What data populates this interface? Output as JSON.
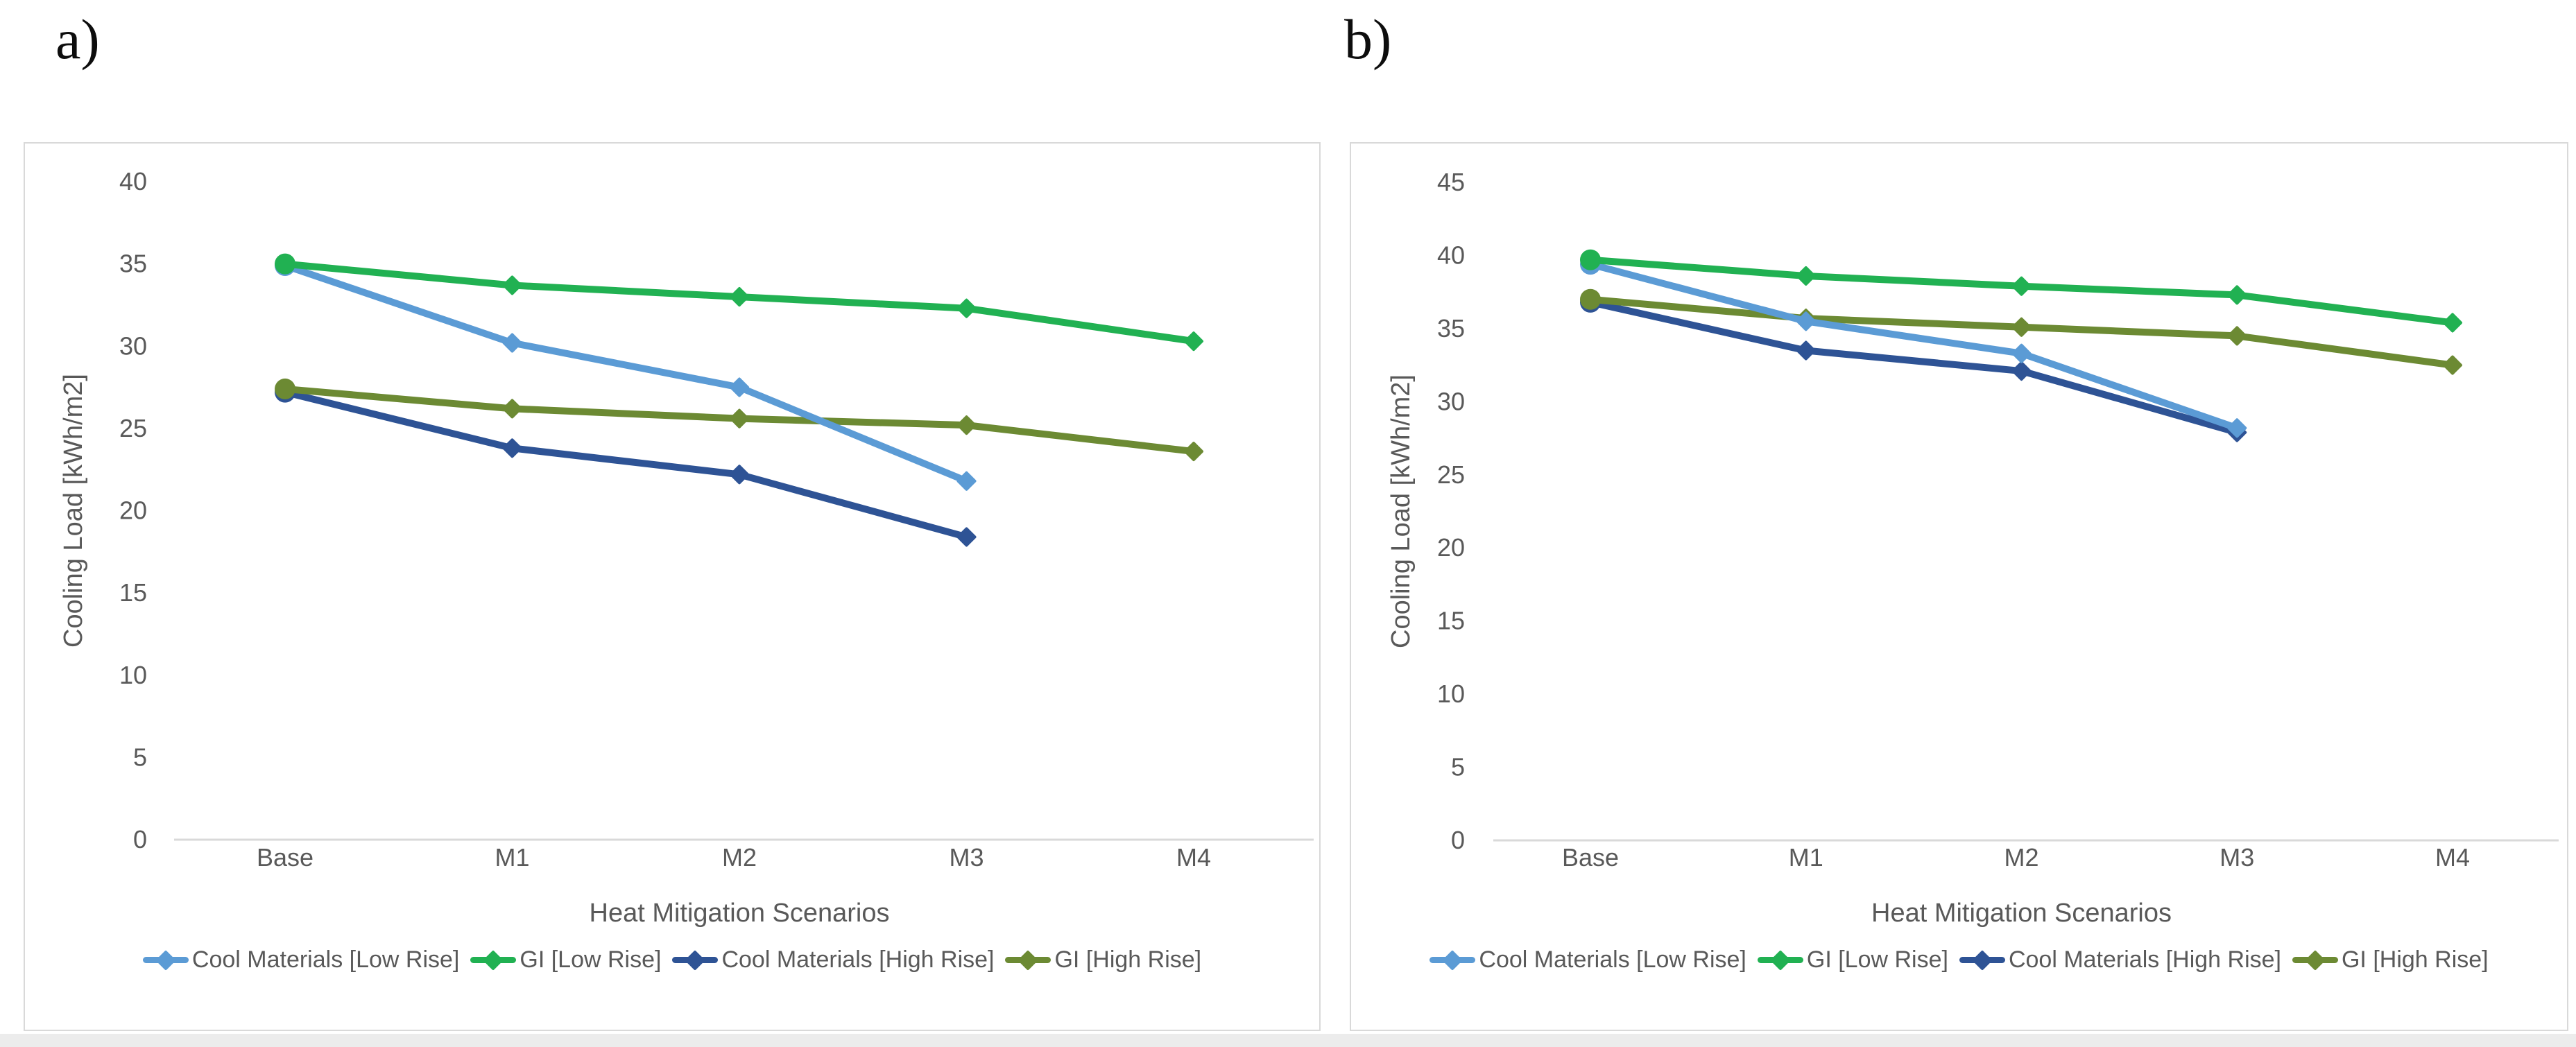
{
  "figure": {
    "background": "#ffffff",
    "panel_border_color": "#d9d9d9",
    "axis_line_color": "#d9d9d9",
    "text_color": "#595959",
    "bottom_strip_color": "#ececec"
  },
  "chart_data": [
    {
      "type": "line",
      "panel_label": "a)",
      "title": "",
      "xlabel": "Heat Mitigation Scenarios",
      "ylabel": "Cooling Load [kWh/m2]",
      "categories": [
        "Base",
        "M1",
        "M2",
        "M3",
        "M4"
      ],
      "ylim": [
        0,
        40
      ],
      "ytick_step": 5,
      "grid": false,
      "legend_position": "bottom",
      "series": [
        {
          "name": "Cool Materials [Low Rise]",
          "color": "#5B9BD5",
          "values": [
            34.9,
            30.2,
            27.5,
            21.8,
            null
          ]
        },
        {
          "name": "GI [Low Rise]",
          "color": "#21B152",
          "values": [
            35.0,
            33.7,
            33.0,
            32.3,
            30.3
          ]
        },
        {
          "name": "Cool Materials [High Rise]",
          "color": "#2E5395",
          "values": [
            27.2,
            23.8,
            22.2,
            18.4,
            null
          ]
        },
        {
          "name": "GI [High Rise]",
          "color": "#6C8A33",
          "values": [
            27.4,
            26.2,
            25.6,
            25.2,
            23.6
          ]
        }
      ]
    },
    {
      "type": "line",
      "panel_label": "b)",
      "title": "",
      "xlabel": "Heat Mitigation Scenarios",
      "ylabel": "Cooling Load [kWh/m2]",
      "categories": [
        "Base",
        "M1",
        "M2",
        "M3",
        "M4"
      ],
      "ylim": [
        0,
        45
      ],
      "ytick_step": 5,
      "grid": false,
      "legend_position": "bottom",
      "series": [
        {
          "name": "Cool Materials [Low Rise]",
          "color": "#5B9BD5",
          "values": [
            39.4,
            35.5,
            33.3,
            28.2,
            null
          ]
        },
        {
          "name": "GI [Low Rise]",
          "color": "#21B152",
          "values": [
            39.7,
            38.6,
            37.9,
            37.3,
            35.4
          ]
        },
        {
          "name": "Cool Materials [High Rise]",
          "color": "#2E5395",
          "values": [
            36.8,
            33.5,
            32.1,
            27.9,
            null
          ]
        },
        {
          "name": "GI [High Rise]",
          "color": "#6C8A33",
          "values": [
            37.0,
            35.7,
            35.1,
            34.5,
            32.5
          ]
        }
      ]
    }
  ]
}
